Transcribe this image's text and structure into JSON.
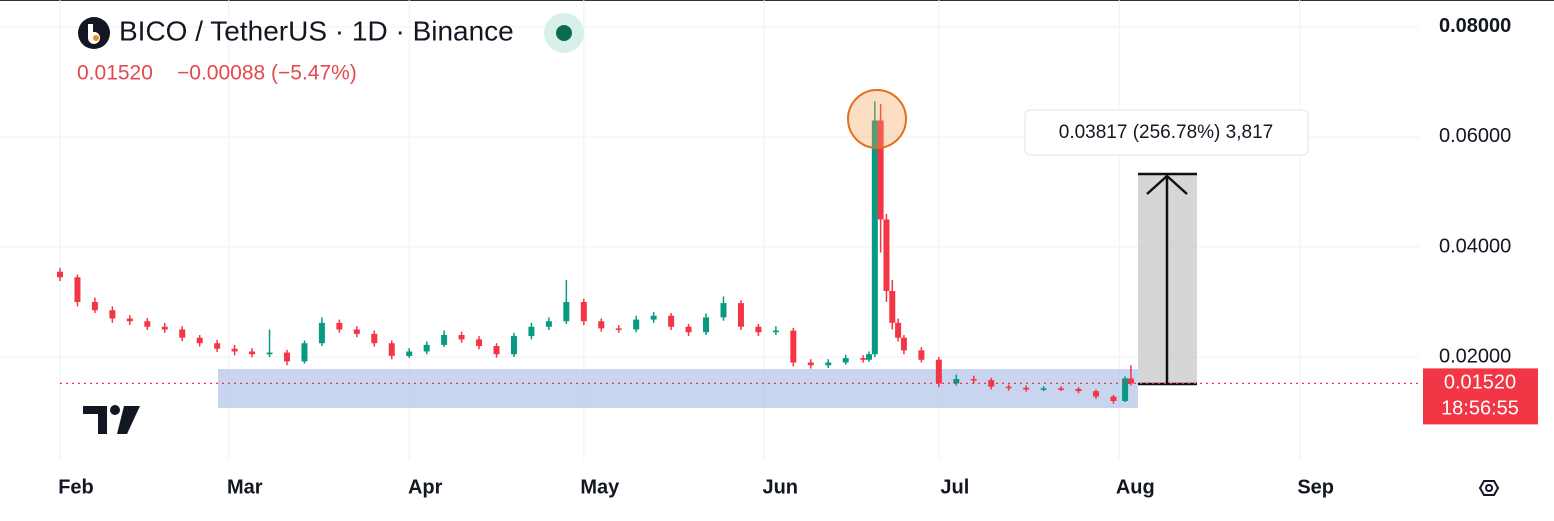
{
  "chart_data": {
    "type": "candlestick",
    "title": "BICO / TetherUS · 1D · Binance",
    "change": "−0.00088 (−5.47%)",
    "up_color": "#089981",
    "down_color": "#f23645",
    "x": [
      0,
      3,
      6,
      9,
      12,
      15,
      18,
      21,
      24,
      27,
      30,
      33,
      36,
      39,
      42,
      45,
      48,
      51,
      54,
      57,
      60,
      63,
      66,
      69,
      72,
      75,
      78,
      81,
      84,
      87,
      90,
      93,
      96,
      99,
      102,
      105,
      108,
      111,
      114,
      117,
      120,
      123,
      126,
      129,
      132,
      135,
      138,
      139,
      140,
      141,
      142,
      143,
      144,
      145,
      148,
      151,
      154,
      157,
      160,
      163,
      166,
      169,
      172,
      175,
      178,
      181,
      183,
      184
    ],
    "open": [
      0.0355,
      0.0345,
      0.03,
      0.0285,
      0.027,
      0.0265,
      0.0255,
      0.025,
      0.0235,
      0.0225,
      0.0215,
      0.021,
      0.0205,
      0.0208,
      0.0192,
      0.0225,
      0.0262,
      0.025,
      0.0242,
      0.0225,
      0.0202,
      0.021,
      0.0222,
      0.024,
      0.0232,
      0.022,
      0.0205,
      0.0238,
      0.0255,
      0.0265,
      0.03,
      0.0265,
      0.0252,
      0.025,
      0.0268,
      0.0275,
      0.0255,
      0.0245,
      0.0272,
      0.0298,
      0.0255,
      0.0245,
      0.0248,
      0.019,
      0.0185,
      0.019,
      0.0198,
      0.0195,
      0.0205,
      0.063,
      0.045,
      0.032,
      0.0262,
      0.0235,
      0.0212,
      0.0195,
      0.0152,
      0.016,
      0.0158,
      0.0146,
      0.0144,
      0.0141,
      0.0143,
      0.0142,
      0.0138,
      0.0128,
      0.012,
      0.0161
    ],
    "high": [
      0.0362,
      0.035,
      0.0308,
      0.0292,
      0.0276,
      0.0271,
      0.0262,
      0.0256,
      0.024,
      0.0231,
      0.0222,
      0.0216,
      0.025,
      0.0213,
      0.023,
      0.0272,
      0.0268,
      0.0256,
      0.0248,
      0.023,
      0.0216,
      0.0228,
      0.0248,
      0.0246,
      0.0238,
      0.0225,
      0.0244,
      0.0262,
      0.0272,
      0.034,
      0.0306,
      0.027,
      0.0258,
      0.0275,
      0.0282,
      0.028,
      0.026,
      0.0279,
      0.031,
      0.0303,
      0.026,
      0.0256,
      0.0253,
      0.0196,
      0.0196,
      0.0204,
      0.0203,
      0.021,
      0.0665,
      0.066,
      0.046,
      0.034,
      0.027,
      0.024,
      0.0218,
      0.02,
      0.0168,
      0.0166,
      0.0162,
      0.015,
      0.0148,
      0.0147,
      0.0147,
      0.0145,
      0.0141,
      0.0131,
      0.0165,
      0.0185
    ],
    "low": [
      0.0338,
      0.0292,
      0.028,
      0.0262,
      0.0258,
      0.0249,
      0.0244,
      0.0229,
      0.0219,
      0.0209,
      0.0203,
      0.0199,
      0.02,
      0.0185,
      0.0188,
      0.022,
      0.0244,
      0.0236,
      0.0219,
      0.0196,
      0.0198,
      0.0205,
      0.0218,
      0.0226,
      0.0214,
      0.0199,
      0.02,
      0.0232,
      0.0249,
      0.026,
      0.0258,
      0.0246,
      0.0244,
      0.0245,
      0.0262,
      0.0249,
      0.0238,
      0.024,
      0.0266,
      0.0249,
      0.0238,
      0.024,
      0.0183,
      0.0179,
      0.018,
      0.0186,
      0.019,
      0.0191,
      0.02,
      0.039,
      0.03,
      0.025,
      0.0228,
      0.0205,
      0.019,
      0.0145,
      0.0148,
      0.0152,
      0.0141,
      0.0139,
      0.0137,
      0.0138,
      0.0138,
      0.0134,
      0.0124,
      0.0115,
      0.0118,
      0.0148
    ],
    "close": [
      0.0345,
      0.03,
      0.0285,
      0.027,
      0.0265,
      0.0255,
      0.025,
      0.0235,
      0.0225,
      0.0215,
      0.021,
      0.0205,
      0.0208,
      0.0192,
      0.0225,
      0.0262,
      0.025,
      0.0242,
      0.0225,
      0.0202,
      0.021,
      0.0222,
      0.024,
      0.0232,
      0.022,
      0.0205,
      0.0238,
      0.0255,
      0.0265,
      0.03,
      0.0265,
      0.0252,
      0.025,
      0.0268,
      0.0275,
      0.0255,
      0.0245,
      0.0272,
      0.0298,
      0.0255,
      0.0245,
      0.0248,
      0.019,
      0.0185,
      0.019,
      0.0198,
      0.0195,
      0.0205,
      0.063,
      0.045,
      0.032,
      0.0262,
      0.0235,
      0.0212,
      0.0195,
      0.0152,
      0.016,
      0.0158,
      0.0146,
      0.0144,
      0.0141,
      0.0143,
      0.0142,
      0.0138,
      0.0128,
      0.012,
      0.0161,
      0.0152
    ],
    "xlim": [
      0,
      233.5
    ],
    "xticks": [
      {
        "value": 0,
        "label": "Feb"
      },
      {
        "value": 29,
        "label": "Mar"
      },
      {
        "value": 60,
        "label": "Apr"
      },
      {
        "value": 90,
        "label": "May"
      },
      {
        "value": 121,
        "label": "Jun"
      },
      {
        "value": 151,
        "label": "Jul"
      },
      {
        "value": 182,
        "label": "Aug"
      },
      {
        "value": 213,
        "label": "Sep"
      }
    ],
    "ylim": [
      0,
      0.0849
    ],
    "yticks": [
      {
        "value": 0.02,
        "label": "0.02000"
      },
      {
        "value": 0.04,
        "label": "0.04000"
      },
      {
        "value": 0.06,
        "label": "0.06000"
      },
      {
        "value": 0.08,
        "label": "0.08000"
      }
    ],
    "grid": true,
    "last_price": {
      "value": 0.0152,
      "label": "0.01520"
    },
    "countdown": "18:56:55",
    "measure_label": "0.03817 (256.78%) 3,817"
  }
}
